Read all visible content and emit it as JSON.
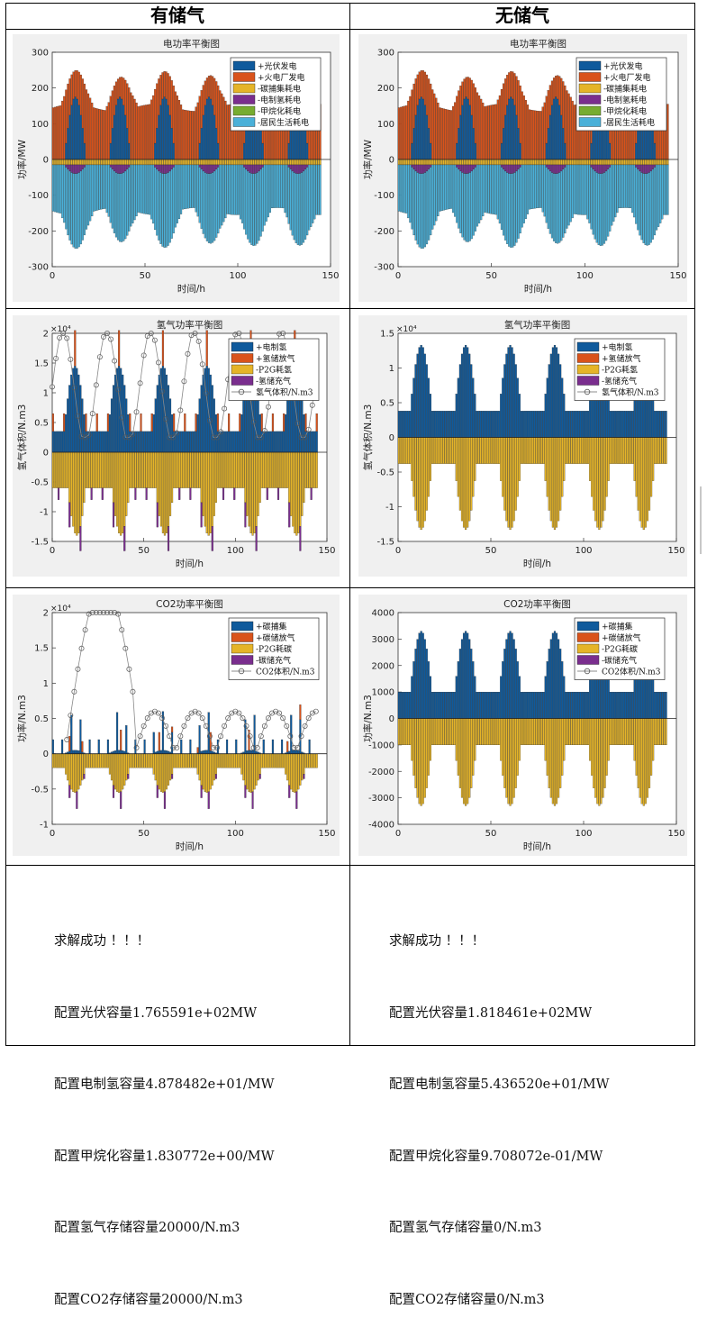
{
  "headers": {
    "left": "有储气",
    "right": "无储气"
  },
  "charts": {
    "power_left": {
      "title": "电功率平衡图",
      "xlabel": "时间/h",
      "ylabel": "功率/MW",
      "yticks": [
        "300",
        "200",
        "100",
        "0",
        "-100",
        "-200",
        "-300"
      ],
      "xticks": [
        "0",
        "50",
        "100",
        "150"
      ],
      "legend": [
        "+光伏发电",
        "+火电厂发电",
        "-碳捕集耗电",
        "-电制氢耗电",
        "-甲烷化耗电",
        "-居民生活耗电"
      ]
    },
    "power_right": {
      "title": "电功率平衡图",
      "xlabel": "时间/h",
      "ylabel": "功率/MW",
      "yticks": [
        "300",
        "200",
        "100",
        "0",
        "-100",
        "-200",
        "-300"
      ],
      "xticks": [
        "0",
        "50",
        "100",
        "150"
      ],
      "legend": [
        "+光伏发电",
        "+火电厂发电",
        "-碳捕集耗电",
        "-电制氢耗电",
        "-甲烷化耗电",
        "-居民生活耗电"
      ]
    },
    "h2_left": {
      "title": "氢气功率平衡图",
      "xlabel": "时间/h",
      "ylabel": "氢气体积/N.m3",
      "exp": "×10⁴",
      "yticks": [
        "2",
        "1.5",
        "1",
        "0.5",
        "0",
        "-0.5",
        "-1",
        "-1.5"
      ],
      "xticks": [
        "0",
        "50",
        "100",
        "150"
      ],
      "legend": [
        "+电制氢",
        "+氢储放气",
        "-P2G耗氢",
        "-氢储充气",
        "氢气体积/N.m3"
      ]
    },
    "h2_right": {
      "title": "氢气功率平衡图",
      "xlabel": "时间/h",
      "ylabel": "氢气体积/N.m3",
      "exp": "×10⁴",
      "yticks": [
        "1.5",
        "1",
        "0.5",
        "0",
        "-0.5",
        "-1",
        "-1.5"
      ],
      "xticks": [
        "0",
        "50",
        "100",
        "150"
      ],
      "legend": [
        "+电制氢",
        "+氢储放气",
        "-P2G耗氢",
        "-氢储充气",
        "氢气体积/N.m3"
      ]
    },
    "co2_left": {
      "title": "CO2功率平衡图",
      "xlabel": "时间/h",
      "ylabel": "功率/N.m3",
      "exp": "×10⁴",
      "yticks": [
        "2",
        "1.5",
        "1",
        "0.5",
        "0",
        "-0.5",
        "-1"
      ],
      "xticks": [
        "0",
        "50",
        "100",
        "150"
      ],
      "legend": [
        "+碳捕集",
        "+碳储放气",
        "-P2G耗碳",
        "-碳储充气",
        "CO2体积/N.m3"
      ]
    },
    "co2_right": {
      "title": "CO2功率平衡图",
      "xlabel": "时间/h",
      "ylabel": "功率/N.m3",
      "yticks": [
        "4000",
        "3000",
        "2000",
        "1000",
        "0",
        "-1000",
        "-2000",
        "-3000",
        "-4000"
      ],
      "xticks": [
        "0",
        "50",
        "100",
        "150"
      ],
      "legend": [
        "+碳捕集",
        "+碳储放气",
        "-P2G耗碳",
        "-碳储充气",
        "CO2体积/N.m3"
      ]
    }
  },
  "colors": {
    "blue": "#0f5a9c",
    "orange": "#d9531b",
    "yellow": "#e5b428",
    "purple": "#7a2e8e",
    "green": "#77ac30",
    "cyan": "#4ab0d8"
  },
  "results": {
    "left": [
      "求解成功 ！！！",
      "配置光伏容量1.765591e+02MW",
      "配置电制氢容量4.878482e+01/MW",
      "配置甲烷化容量1.830772e+00/MW",
      "配置氢气存储容量20000/N.m3",
      "配置CO2存储容量20000/N.m3"
    ],
    "right": [
      "求解成功 ！！！",
      "配置光伏容量1.818461e+02MW",
      "配置电制氢容量5.436520e+01/MW",
      "配置甲烷化容量9.708072e-01/MW",
      "配置氢气存储容量0/N.m3",
      "配置CO2存储容量0/N.m3"
    ]
  }
}
